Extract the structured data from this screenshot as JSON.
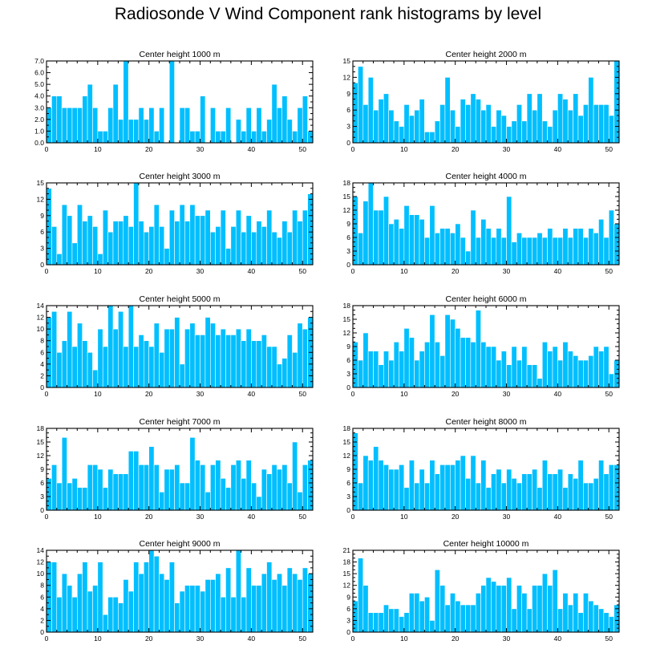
{
  "figure_title": "Radiosonde V Wind Component rank histograms by level",
  "colors": {
    "bar": "#00bfff",
    "frame": "#000000"
  },
  "chart_data": [
    {
      "type": "bar",
      "title": "Center height 1000 m",
      "xlim": [
        0,
        52
      ],
      "ylim": [
        0,
        7
      ],
      "xticks": [
        0,
        10,
        20,
        30,
        40,
        50
      ],
      "yticks": [
        0,
        1,
        2,
        3,
        4,
        5,
        6,
        7
      ],
      "ytick_labels": [
        "0.0",
        "1.0",
        "2.0",
        "3.0",
        "4.0",
        "5.0",
        "6.0",
        "7.0"
      ],
      "values": [
        3,
        4,
        4,
        3,
        3,
        3,
        3,
        4,
        5,
        3,
        1,
        1,
        3,
        5,
        2,
        7,
        2,
        2,
        3,
        2,
        3,
        1,
        3,
        0,
        7,
        0,
        3,
        3,
        1,
        1,
        4,
        0,
        3,
        1,
        1,
        3,
        0,
        2,
        1,
        3,
        1,
        3,
        1,
        2,
        5,
        3,
        4,
        2,
        1,
        3,
        4,
        1
      ]
    },
    {
      "type": "bar",
      "title": "Center height 2000 m",
      "xlim": [
        0,
        52
      ],
      "ylim": [
        0,
        15
      ],
      "xticks": [
        0,
        10,
        20,
        30,
        40,
        50
      ],
      "yticks": [
        0,
        3,
        6,
        9,
        12,
        15
      ],
      "ytick_labels": [
        "0",
        "3",
        "6",
        "9",
        "12",
        "15"
      ],
      "values": [
        11,
        14,
        7,
        12,
        6,
        8,
        9,
        6,
        4,
        3,
        7,
        5,
        6,
        8,
        2,
        2,
        4,
        7,
        12,
        6,
        3,
        8,
        7,
        9,
        8,
        6,
        7,
        3,
        6,
        5,
        3,
        4,
        7,
        4,
        9,
        6,
        9,
        4,
        3,
        6,
        9,
        8,
        6,
        9,
        5,
        7,
        12,
        7,
        7,
        7,
        5,
        15
      ]
    },
    {
      "type": "bar",
      "title": "Center height 3000 m",
      "xlim": [
        0,
        52
      ],
      "ylim": [
        0,
        15
      ],
      "xticks": [
        0,
        10,
        20,
        30,
        40,
        50
      ],
      "yticks": [
        0,
        3,
        6,
        9,
        12,
        15
      ],
      "ytick_labels": [
        "0",
        "3",
        "6",
        "9",
        "12",
        "15"
      ],
      "values": [
        14,
        7,
        2,
        11,
        9,
        4,
        11,
        8,
        9,
        7,
        2,
        10,
        6,
        8,
        8,
        9,
        7,
        15,
        8,
        6,
        7,
        11,
        7,
        3,
        10,
        8,
        11,
        8,
        11,
        9,
        9,
        10,
        6,
        7,
        10,
        3,
        7,
        10,
        6,
        9,
        6,
        8,
        7,
        10,
        6,
        5,
        8,
        6,
        10,
        8,
        10,
        13
      ]
    },
    {
      "type": "bar",
      "title": "Center height 4000 m",
      "xlim": [
        0,
        52
      ],
      "ylim": [
        0,
        18
      ],
      "xticks": [
        0,
        10,
        20,
        30,
        40,
        50
      ],
      "yticks": [
        0,
        3,
        6,
        9,
        12,
        15,
        18
      ],
      "ytick_labels": [
        "0",
        "3",
        "6",
        "9",
        "12",
        "15",
        "18"
      ],
      "values": [
        15,
        7,
        14,
        18,
        12,
        12,
        15,
        9,
        10,
        8,
        13,
        11,
        11,
        10,
        6,
        13,
        7,
        8,
        8,
        7,
        9,
        6,
        3,
        12,
        6,
        10,
        8,
        6,
        8,
        6,
        15,
        5,
        7,
        6,
        6,
        6,
        7,
        6,
        8,
        6,
        6,
        8,
        6,
        8,
        8,
        6,
        8,
        7,
        10,
        6,
        12,
        9
      ]
    },
    {
      "type": "bar",
      "title": "Center height 5000 m",
      "xlim": [
        0,
        52
      ],
      "ylim": [
        0,
        14
      ],
      "xticks": [
        0,
        10,
        20,
        30,
        40,
        50
      ],
      "yticks": [
        0,
        2,
        4,
        6,
        8,
        10,
        12,
        14
      ],
      "ytick_labels": [
        "0",
        "2",
        "4",
        "6",
        "8",
        "10",
        "12",
        "14"
      ],
      "values": [
        12,
        13,
        6,
        8,
        13,
        7,
        11,
        8,
        6,
        3,
        10,
        7,
        14,
        10,
        13,
        7,
        14,
        7,
        9,
        8,
        7,
        11,
        6,
        10,
        10,
        12,
        4,
        10,
        11,
        9,
        9,
        12,
        11,
        9,
        10,
        9,
        9,
        10,
        8,
        10,
        8,
        8,
        9,
        7,
        7,
        4,
        5,
        9,
        6,
        11,
        10,
        12
      ]
    },
    {
      "type": "bar",
      "title": "Center height 6000 m",
      "xlim": [
        0,
        52
      ],
      "ylim": [
        0,
        18
      ],
      "xticks": [
        0,
        10,
        20,
        30,
        40,
        50
      ],
      "yticks": [
        0,
        3,
        6,
        9,
        12,
        15,
        18
      ],
      "ytick_labels": [
        "0",
        "3",
        "6",
        "9",
        "12",
        "15",
        "18"
      ],
      "values": [
        10,
        6,
        12,
        8,
        8,
        5,
        8,
        6,
        10,
        8,
        13,
        11,
        6,
        8,
        10,
        16,
        10,
        7,
        16,
        15,
        13,
        11,
        11,
        10,
        17,
        10,
        9,
        9,
        6,
        8,
        5,
        9,
        6,
        9,
        5,
        5,
        2,
        10,
        8,
        9,
        6,
        10,
        8,
        7,
        6,
        6,
        7,
        9,
        8,
        9,
        3,
        6
      ]
    },
    {
      "type": "bar",
      "title": "Center height 7000 m",
      "xlim": [
        0,
        52
      ],
      "ylim": [
        0,
        18
      ],
      "xticks": [
        0,
        10,
        20,
        30,
        40,
        50
      ],
      "yticks": [
        0,
        3,
        6,
        9,
        12,
        15,
        18
      ],
      "ytick_labels": [
        "0",
        "3",
        "6",
        "9",
        "12",
        "15",
        "18"
      ],
      "values": [
        7,
        10,
        6,
        16,
        6,
        7,
        5,
        5,
        10,
        10,
        9,
        5,
        9,
        8,
        8,
        8,
        13,
        13,
        10,
        10,
        14,
        10,
        4,
        9,
        9,
        10,
        6,
        6,
        16,
        11,
        10,
        4,
        10,
        11,
        7,
        5,
        10,
        11,
        7,
        11,
        6,
        3,
        9,
        8,
        10,
        9,
        10,
        6,
        15,
        4,
        10,
        11
      ]
    },
    {
      "type": "bar",
      "title": "Center height 8000 m",
      "xlim": [
        0,
        52
      ],
      "ylim": [
        0,
        18
      ],
      "xticks": [
        0,
        10,
        20,
        30,
        40,
        50
      ],
      "yticks": [
        0,
        3,
        6,
        9,
        12,
        15,
        18
      ],
      "ytick_labels": [
        "0",
        "3",
        "6",
        "9",
        "12",
        "15",
        "18"
      ],
      "values": [
        17,
        6,
        12,
        11,
        14,
        11,
        10,
        9,
        9,
        10,
        5,
        11,
        6,
        9,
        6,
        11,
        8,
        10,
        10,
        10,
        11,
        12,
        7,
        12,
        6,
        11,
        5,
        8,
        9,
        6,
        9,
        7,
        6,
        8,
        8,
        9,
        5,
        11,
        8,
        8,
        9,
        5,
        8,
        7,
        11,
        6,
        6,
        7,
        11,
        8,
        10,
        10
      ]
    },
    {
      "type": "bar",
      "title": "Center height 9000 m",
      "xlim": [
        0,
        52
      ],
      "ylim": [
        0,
        14
      ],
      "xticks": [
        0,
        10,
        20,
        30,
        40,
        50
      ],
      "yticks": [
        0,
        2,
        4,
        6,
        8,
        10,
        12,
        14
      ],
      "ytick_labels": [
        "0",
        "2",
        "4",
        "6",
        "8",
        "10",
        "12",
        "14"
      ],
      "values": [
        12,
        12,
        6,
        10,
        8,
        6,
        10,
        12,
        7,
        8,
        12,
        3,
        6,
        6,
        5,
        9,
        7,
        12,
        10,
        12,
        14,
        13,
        10,
        9,
        12,
        5,
        7,
        8,
        8,
        8,
        7,
        9,
        9,
        10,
        6,
        11,
        6,
        14,
        6,
        11,
        8,
        8,
        10,
        12,
        9,
        10,
        8,
        11,
        10,
        9,
        11,
        10
      ]
    },
    {
      "type": "bar",
      "title": "Center height 10000 m",
      "xlim": [
        0,
        52
      ],
      "ylim": [
        0,
        21
      ],
      "xticks": [
        0,
        10,
        20,
        30,
        40,
        50
      ],
      "yticks": [
        0,
        3,
        6,
        9,
        12,
        15,
        18,
        21
      ],
      "ytick_labels": [
        "0",
        "3",
        "6",
        "9",
        "12",
        "15",
        "18",
        "21"
      ],
      "values": [
        8,
        19,
        12,
        5,
        5,
        5,
        7,
        6,
        6,
        4,
        5,
        10,
        10,
        8,
        9,
        3,
        16,
        12,
        7,
        10,
        8,
        7,
        7,
        7,
        10,
        12,
        14,
        13,
        12,
        12,
        14,
        6,
        12,
        10,
        6,
        12,
        12,
        15,
        12,
        16,
        6,
        10,
        7,
        10,
        5,
        10,
        8,
        7,
        6,
        5,
        4,
        7
      ]
    }
  ]
}
